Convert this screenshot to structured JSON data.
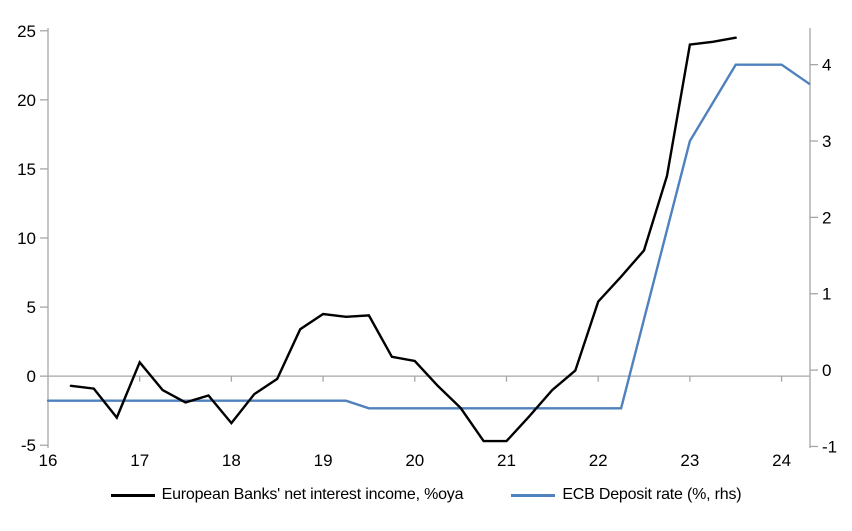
{
  "chart_data": {
    "type": "line",
    "title": "",
    "xlabel": "",
    "ylabel_left": "",
    "ylabel_right": "",
    "grid": "zero-line-only",
    "legend_position": "bottom",
    "x_axis": {
      "ticks": [
        16,
        17,
        18,
        19,
        20,
        21,
        22,
        23,
        24
      ],
      "range": [
        16,
        24.31
      ]
    },
    "left_axis": {
      "ticks": [
        25,
        20,
        15,
        10,
        5,
        0,
        -5
      ],
      "range": [
        -5.2,
        25.2
      ],
      "zero_gridline": true
    },
    "right_axis": {
      "ticks": [
        4,
        3,
        2,
        1,
        0,
        -1
      ],
      "range": [
        -1.02,
        4.48
      ]
    },
    "series": [
      {
        "name": "European Banks' net interest income, %oya",
        "axis": "left",
        "color": "#000000",
        "points": [
          [
            16.25,
            -0.7
          ],
          [
            16.5,
            -0.9
          ],
          [
            16.75,
            -3.0
          ],
          [
            17.0,
            1.0
          ],
          [
            17.25,
            -1.0
          ],
          [
            17.5,
            -1.9
          ],
          [
            17.75,
            -1.4
          ],
          [
            18.0,
            -3.4
          ],
          [
            18.25,
            -1.3
          ],
          [
            18.5,
            -0.2
          ],
          [
            18.75,
            3.4
          ],
          [
            19.0,
            4.5
          ],
          [
            19.25,
            4.3
          ],
          [
            19.5,
            4.4
          ],
          [
            19.75,
            1.4
          ],
          [
            20.0,
            1.1
          ],
          [
            20.25,
            -0.7
          ],
          [
            20.5,
            -2.3
          ],
          [
            20.75,
            -4.7
          ],
          [
            21.0,
            -4.7
          ],
          [
            21.25,
            -2.9
          ],
          [
            21.5,
            -1.0
          ],
          [
            21.75,
            0.4
          ],
          [
            22.0,
            5.4
          ],
          [
            22.25,
            7.2
          ],
          [
            22.5,
            9.1
          ],
          [
            22.75,
            14.5
          ],
          [
            23.0,
            24.0
          ],
          [
            23.25,
            24.2
          ],
          [
            23.5,
            24.5
          ]
        ]
      },
      {
        "name": "ECB Deposit rate (%, rhs)",
        "axis": "right",
        "color": "#4f81bd",
        "points": [
          [
            16.0,
            -0.4
          ],
          [
            19.25,
            -0.4
          ],
          [
            19.5,
            -0.5
          ],
          [
            22.25,
            -0.5
          ],
          [
            23.0,
            3.0
          ],
          [
            23.5,
            4.0
          ],
          [
            24.0,
            4.0
          ],
          [
            24.3,
            3.75
          ]
        ]
      }
    ]
  },
  "colors": {
    "axis": "#a6a6a6",
    "zero_gridline": "#a6a6a6",
    "tick_text": "#000000",
    "background": "#ffffff"
  }
}
